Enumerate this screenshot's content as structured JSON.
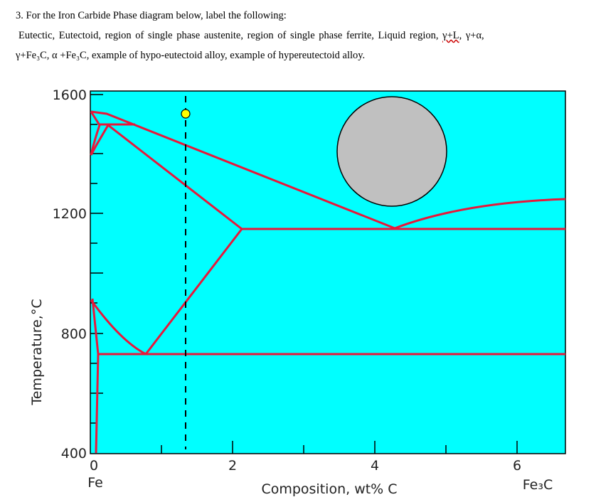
{
  "question": {
    "title": "3. For the Iron Carbide Phase diagram below, label the following:",
    "line1_a": "Eutectic, Eutectoid, region of single phase austenite, region of single phase ferrite, Liquid region, ",
    "line1_b": "γ+L",
    "line1_c": ", γ+α,",
    "line2": "γ+Fe₃C, α +Fe₃C,  example of hypo-eutectoid alloy, example of hypereutectoid alloy."
  },
  "diagram": {
    "background": "#00ffff",
    "line_color": "#e8173a",
    "y_label": "Temperature,°C",
    "x_label": "Composition, wt% C",
    "x_start_label": "Fe",
    "x_end_label": "Fe₃C",
    "y_ticks": [
      "1600",
      "1200",
      "800",
      "400"
    ],
    "x_ticks": [
      "0",
      "2",
      "4",
      "6"
    ],
    "marker_composition_wt": 1.35,
    "marker_color": "#ffff00"
  }
}
